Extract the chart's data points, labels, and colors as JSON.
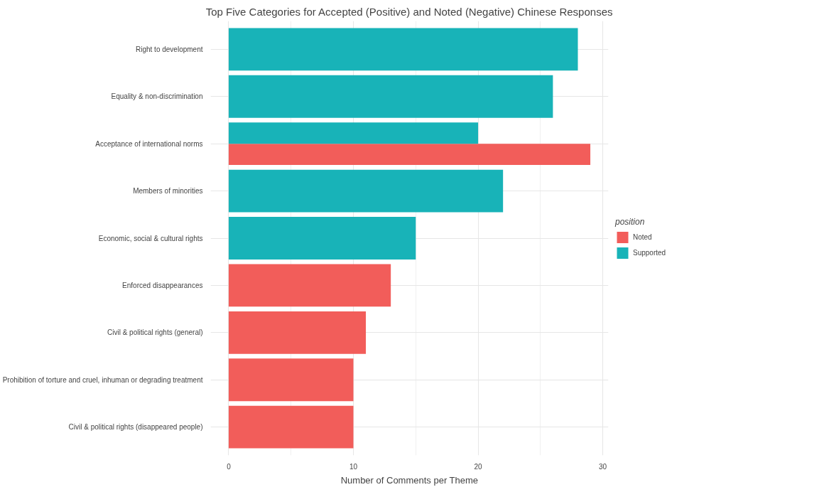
{
  "chart_data": {
    "type": "bar",
    "orientation": "horizontal",
    "title": "Top Five Categories for Accepted (Positive) and Noted (Negative) Chinese Responses",
    "xlabel": "Number of Comments per Theme",
    "legend_title": "position",
    "legend": "right",
    "grid": true,
    "categories": [
      "Right to development",
      "Equality & non-discrimination",
      "Acceptance of international norms",
      "Members of minorities",
      "Economic, social & cultural rights",
      "Enforced disappearances",
      "Civil & political rights (general)",
      "Prohibition of torture and cruel, inhuman or degrading treatment",
      "Civil & political rights (disappeared people)"
    ],
    "series": [
      {
        "name": "Noted",
        "color": "#f25d5a",
        "values": [
          null,
          null,
          29,
          null,
          null,
          13,
          11,
          10,
          10
        ]
      },
      {
        "name": "Supported",
        "color": "#18b3b8",
        "values": [
          28,
          26,
          20,
          22,
          15,
          null,
          null,
          null,
          null
        ]
      }
    ],
    "xlim": [
      -1.45,
      30.45
    ],
    "xticks": [
      0,
      10,
      20,
      30
    ]
  }
}
